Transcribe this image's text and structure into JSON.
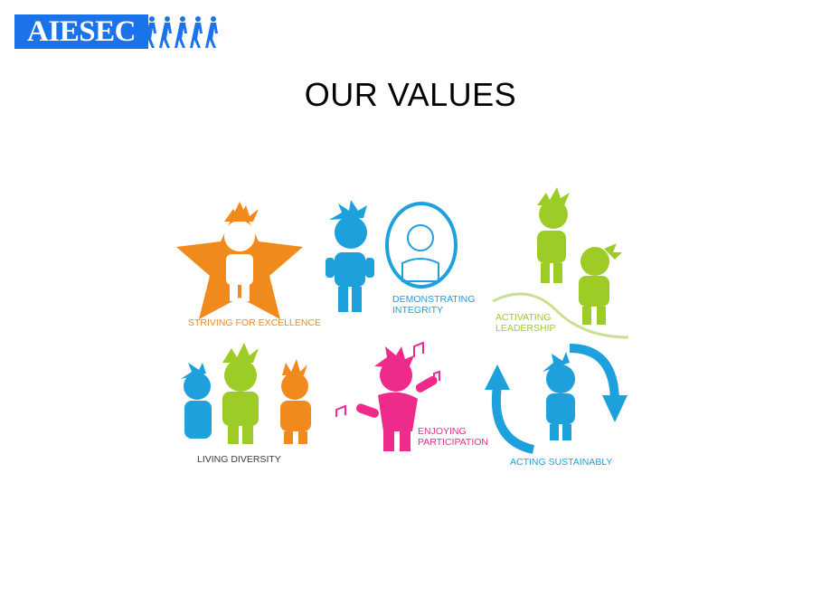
{
  "logo": {
    "text": "AIESEC"
  },
  "slide": {
    "title": "OUR VALUES"
  },
  "values": [
    {
      "label": "STRIVING FOR EXCELLENCE",
      "color": "#f08a1c"
    },
    {
      "label": "DEMONSTRATING\nINTEGRITY",
      "color": "#1ea0dc"
    },
    {
      "label": "ACTIVATING\nLEADERSHIP",
      "color": "#9dcc26"
    },
    {
      "label": "LIVING DIVERSITY",
      "color": "#1ea0dc"
    },
    {
      "label": "ENJOYING\nPARTICIPATION",
      "color": "#ee2a8b"
    },
    {
      "label": "ACTING SUSTAINABLY",
      "color": "#1ea0dc"
    }
  ],
  "colors": {
    "logo_blue": "#1a73e8",
    "orange": "#f08a1c",
    "blue": "#1ea0dc",
    "green": "#9dcc26",
    "pink": "#ee2a8b",
    "dark_text": "#3a3a3a"
  }
}
